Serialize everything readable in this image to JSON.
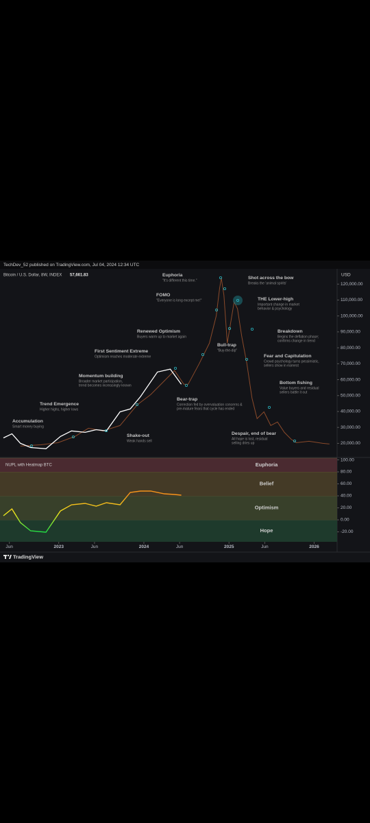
{
  "header": {
    "text": "TechDev_52 published on TradingView.com, Jul 04, 2024 12:34 UTC"
  },
  "footer": {
    "brand": "TradingView"
  },
  "chart_data": [
    {
      "type": "line",
      "title": "Bitcoin / U.S. Dollar, 8W, INDEX",
      "last_price": {
        "value": 57661.83,
        "label": "57,661.83"
      },
      "axis_label": "USD",
      "xlim": [
        2022.31,
        2026.27
      ],
      "ylim": [
        12000,
        127000
      ],
      "yticks": [
        {
          "value": 20000,
          "label": "20,000.00"
        },
        {
          "value": 30000,
          "label": "30,000.00"
        },
        {
          "value": 40000,
          "label": "40,000.00"
        },
        {
          "value": 50000,
          "label": "50,000.00"
        },
        {
          "value": 60000,
          "label": "60,000.00"
        },
        {
          "value": 70000,
          "label": "70,000.00"
        },
        {
          "value": 80000,
          "label": "80,000.00"
        },
        {
          "value": 90000,
          "label": "90,000.00"
        },
        {
          "value": 100000,
          "label": "100,000.00"
        },
        {
          "value": 110000,
          "label": "110,000.00"
        },
        {
          "value": 120000,
          "label": "120,000.00"
        }
      ],
      "series": [
        {
          "name": "BTC",
          "color": "#ffffff",
          "x": [
            2022.35,
            2022.45,
            2022.55,
            2022.67,
            2022.85,
            2023.02,
            2023.15,
            2023.31,
            2023.44,
            2023.56,
            2023.72,
            2023.84,
            2023.96,
            2024.16,
            2024.31,
            2024.44
          ],
          "values": [
            23400,
            26000,
            20000,
            17400,
            16600,
            24300,
            27800,
            26900,
            28600,
            27800,
            39800,
            41600,
            49300,
            64800,
            66600,
            57100
          ]
        },
        {
          "name": "Cycle projection",
          "color": "#8a4a2a",
          "x": [
            2022.55,
            2022.79,
            2022.99,
            2023.19,
            2023.35,
            2023.52,
            2023.72,
            2023.92,
            2024.08,
            2024.24,
            2024.36,
            2024.47,
            2024.52,
            2024.65,
            2024.77,
            2024.85,
            2024.89,
            2024.91,
            2024.94,
            2024.98,
            2025.02,
            2025.06,
            2025.1,
            2025.15,
            2025.21,
            2025.27,
            2025.33,
            2025.41,
            2025.49,
            2025.57,
            2025.65,
            2025.73,
            2025.79,
            2025.94,
            2026.1,
            2026.18
          ],
          "values": [
            18300,
            19100,
            20400,
            24300,
            29500,
            27800,
            31200,
            44100,
            50600,
            59200,
            65700,
            57100,
            57100,
            70000,
            82900,
            100100,
            117400,
            123800,
            113000,
            82900,
            95900,
            108800,
            104500,
            87200,
            70000,
            48400,
            35500,
            39800,
            31200,
            33400,
            26900,
            22600,
            20400,
            21300,
            20000,
            19600
          ]
        }
      ],
      "annotations": [
        {
          "title": "Accumulation",
          "lines": [
            "Smart money buying"
          ]
        },
        {
          "title": "Trend Emergence",
          "lines": [
            "Higher highs, higher lows"
          ]
        },
        {
          "title": "Momentum building",
          "lines": [
            "Broader market participation,",
            "trend becomes increasingly known"
          ]
        },
        {
          "title": "First Sentiment Extreme",
          "lines": [
            "Optimism reaches moderate extreme"
          ]
        },
        {
          "title": "Renewed Optimism",
          "lines": [
            "Buyers warm up to market again"
          ]
        },
        {
          "title": "FOMO",
          "lines": [
            "\"Everyone is long except me!\""
          ]
        },
        {
          "title": "Euphoria",
          "lines": [
            "\"It's different this time.\""
          ]
        },
        {
          "title": "Shot across the bow",
          "lines": [
            "Breaks the 'animal spirits'"
          ]
        },
        {
          "title": "THE Lower-high",
          "lines": [
            "Important change in market",
            "behavior & psychology"
          ]
        },
        {
          "title": "Bull-trap",
          "lines": [
            "\"Buy-the-dip\""
          ]
        },
        {
          "title": "Breakdown",
          "lines": [
            "Begins the deflation phase;",
            "confirms change in trend"
          ]
        },
        {
          "title": "Fear and Capitulation",
          "lines": [
            "Crowd psychology turns pessimistic,",
            "sellers show in earnest"
          ]
        },
        {
          "title": "Bottom fishing",
          "lines": [
            "Value buyers and residual",
            "sellers battle it out"
          ]
        },
        {
          "title": "Shake-out",
          "lines": [
            "Weak hands sell"
          ]
        },
        {
          "title": "Bear-trap",
          "lines": [
            "Correction fed by overvaluation concerns &",
            "pre-mature fears that cycle has ended"
          ]
        },
        {
          "title": "Despair, end of bear",
          "lines": [
            "All hope is lost, residual",
            "selling dries up"
          ]
        }
      ]
    },
    {
      "type": "line",
      "title": "NUPL with Heatmap BTC",
      "xlim": [
        2022.31,
        2026.27
      ],
      "ylim": [
        -36.6,
        102.9
      ],
      "xticks": [
        {
          "value": 2022.42,
          "label": "Jun"
        },
        2023,
        {
          "value": 2023.42,
          "label": "Jun"
        },
        2024,
        {
          "value": 2024.42,
          "label": "Jun"
        },
        2025,
        {
          "value": 2025.42,
          "label": "Jun"
        },
        2026
      ],
      "yticks": [
        {
          "value": -20,
          "label": "-20.00"
        },
        {
          "value": 0,
          "label": "0.00"
        },
        {
          "value": 20,
          "label": "20.00"
        },
        {
          "value": 40,
          "label": "40.00"
        },
        {
          "value": 60,
          "label": "60.00"
        },
        {
          "value": 80,
          "label": "80.00"
        },
        {
          "value": 100,
          "label": "100.00"
        }
      ],
      "zones": [
        {
          "name": "Hope",
          "from": -36.6,
          "to": 0,
          "color": "#1e3a2c"
        },
        {
          "name": "Optimism",
          "from": 0,
          "to": 40,
          "color": "#38402a"
        },
        {
          "name": "Belief",
          "from": 40,
          "to": 80,
          "color": "#443a26"
        },
        {
          "name": "Euphoria",
          "from": 80,
          "to": 102.9,
          "color": "#4a2a30"
        }
      ],
      "series": [
        {
          "name": "NUPL",
          "colors": [
            "#22dd44",
            "#f2ea1c",
            "#f7931a"
          ],
          "x": [
            2022.35,
            2022.45,
            2022.55,
            2022.67,
            2022.85,
            2023.02,
            2023.15,
            2023.31,
            2023.44,
            2023.56,
            2023.72,
            2023.84,
            2023.96,
            2024.08,
            2024.24,
            2024.36,
            2024.44
          ],
          "values": [
            6.9,
            18.3,
            -4.6,
            -18.3,
            -20.6,
            14.9,
            25.1,
            27.4,
            22.9,
            28.6,
            25.1,
            45.7,
            48,
            48,
            43.4,
            42.3,
            41.1
          ]
        }
      ]
    }
  ]
}
